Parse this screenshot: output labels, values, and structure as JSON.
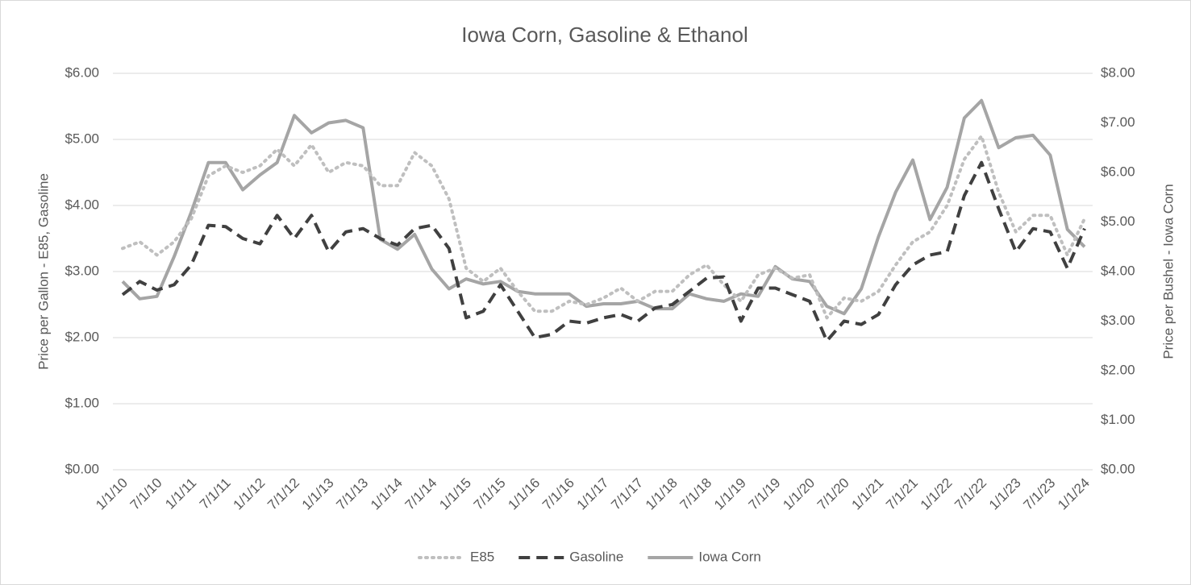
{
  "chart_data": {
    "type": "line",
    "title": "Iowa Corn, Gasoline & Ethanol",
    "ylabel": "Price per Gallon - E85, Gasoline",
    "y2label": "Price per Bushel - Iowa Corn",
    "categories": [
      "1/1/10",
      null,
      "7/1/10",
      null,
      "1/1/11",
      null,
      "7/1/11",
      null,
      "1/1/12",
      null,
      "7/1/12",
      null,
      "1/1/13",
      null,
      "7/1/13",
      null,
      "1/1/14",
      null,
      "7/1/14",
      null,
      "1/1/15",
      null,
      "7/1/15",
      null,
      "1/1/16",
      null,
      "7/1/16",
      null,
      "1/1/17",
      null,
      "7/1/17",
      null,
      "1/1/18",
      null,
      "7/1/18",
      null,
      "1/1/19",
      null,
      "7/1/19",
      null,
      "1/1/20",
      null,
      "7/1/20",
      null,
      "1/1/21",
      null,
      "7/1/21",
      null,
      "1/1/22",
      null,
      "7/1/22",
      null,
      "1/1/23",
      null,
      "7/1/23",
      null,
      "1/1/24"
    ],
    "series": [
      {
        "name": "E85",
        "color": "#bfbfbf",
        "dash": "dotted",
        "axis": "y",
        "values": [
          3.35,
          3.45,
          3.25,
          3.45,
          3.8,
          4.45,
          4.6,
          4.5,
          4.6,
          4.85,
          4.6,
          4.92,
          4.5,
          4.65,
          4.6,
          4.3,
          4.3,
          4.8,
          4.6,
          4.1,
          3.05,
          2.85,
          3.05,
          2.7,
          2.4,
          2.4,
          2.55,
          2.5,
          2.6,
          2.75,
          2.55,
          2.7,
          2.7,
          2.95,
          3.1,
          2.8,
          2.55,
          2.95,
          3.05,
          2.9,
          2.95,
          2.3,
          2.6,
          2.55,
          2.7,
          3.1,
          3.45,
          3.6,
          4.0,
          4.7,
          5.05,
          4.2,
          3.6,
          3.85,
          3.85,
          3.25,
          3.8
        ]
      },
      {
        "name": "Gasoline",
        "color": "#404040",
        "dash": "dashed",
        "axis": "y",
        "values": [
          2.65,
          2.85,
          2.72,
          2.8,
          3.1,
          3.7,
          3.68,
          3.5,
          3.42,
          3.85,
          3.5,
          3.85,
          3.3,
          3.6,
          3.65,
          3.5,
          3.4,
          3.65,
          3.7,
          3.35,
          2.3,
          2.4,
          2.8,
          2.4,
          2.0,
          2.05,
          2.25,
          2.22,
          2.3,
          2.35,
          2.25,
          2.45,
          2.5,
          2.7,
          2.9,
          2.92,
          2.25,
          2.75,
          2.75,
          2.65,
          2.55,
          1.95,
          2.25,
          2.2,
          2.35,
          2.8,
          3.1,
          3.25,
          3.3,
          4.15,
          4.65,
          3.95,
          3.3,
          3.65,
          3.6,
          3.05,
          3.65
        ]
      },
      {
        "name": "Iowa Corn",
        "color": "#a5a5a5",
        "dash": "solid",
        "axis": "y2",
        "values": [
          3.8,
          3.45,
          3.5,
          4.3,
          5.2,
          6.2,
          6.2,
          5.65,
          5.95,
          6.2,
          7.15,
          6.8,
          7.0,
          7.05,
          6.9,
          4.65,
          4.45,
          4.75,
          4.05,
          3.65,
          3.85,
          3.75,
          3.8,
          3.6,
          3.55,
          3.55,
          3.55,
          3.3,
          3.35,
          3.35,
          3.4,
          3.25,
          3.25,
          3.55,
          3.45,
          3.4,
          3.55,
          3.5,
          4.1,
          3.85,
          3.8,
          3.3,
          3.15,
          3.65,
          4.7,
          5.6,
          6.25,
          5.05,
          5.7,
          7.1,
          7.45,
          6.5,
          6.7,
          6.75,
          6.35,
          4.85,
          4.5
        ]
      }
    ],
    "ylim": [
      0,
      6
    ],
    "yticks": [
      {
        "value": 0,
        "label": "$0.00"
      },
      {
        "value": 1,
        "label": "$1.00"
      },
      {
        "value": 2,
        "label": "$2.00"
      },
      {
        "value": 3,
        "label": "$3.00"
      },
      {
        "value": 4,
        "label": "$4.00"
      },
      {
        "value": 5,
        "label": "$5.00"
      },
      {
        "value": 6,
        "label": "$6.00"
      }
    ],
    "y2lim": [
      0,
      8
    ],
    "y2ticks": [
      {
        "value": 0,
        "label": "$0.00"
      },
      {
        "value": 1,
        "label": "$1.00"
      },
      {
        "value": 2,
        "label": "$2.00"
      },
      {
        "value": 3,
        "label": "$3.00"
      },
      {
        "value": 4,
        "label": "$4.00"
      },
      {
        "value": 5,
        "label": "$5.00"
      },
      {
        "value": 6,
        "label": "$6.00"
      },
      {
        "value": 7,
        "label": "$7.00"
      },
      {
        "value": 8,
        "label": "$8.00"
      }
    ],
    "grid": true,
    "legend": "bottom"
  }
}
